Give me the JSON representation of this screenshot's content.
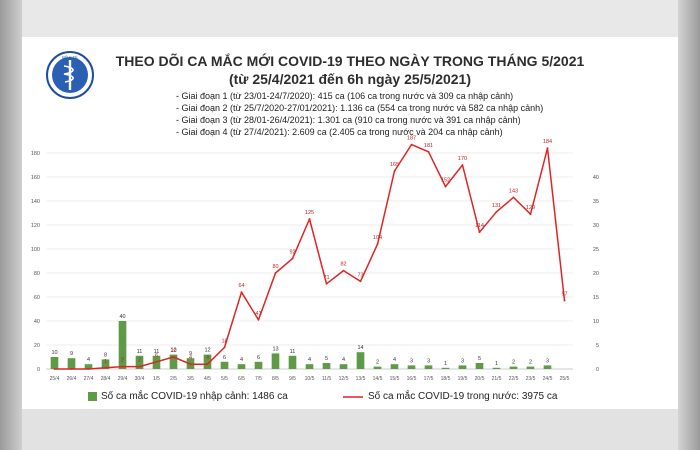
{
  "header": {
    "title": "THEO DÕI CA MẮC MỚI COVID-19 THEO NGÀY TRONG THÁNG 5/2021",
    "subtitle": "(từ 25/4/2021 đến 6h ngày 25/5/2021)",
    "phases": [
      "- Giai đoạn 1 (từ 23/01-24/7/2020): 415 ca (106 ca trong nước và 309 ca nhập cảnh)",
      "- Giai đoạn 2 (từ 25/7/2020-27/01/2021): 1.136 ca (554 ca trong nước và 582 ca nhập cảnh)",
      "- Giai đoạn 3 (từ 28/01-26/4/2021): 1.301 ca (910 ca trong nước và 391 ca nhập cảnh)",
      "- Giai đoạn 4 (từ 27/4/2021): 2.609 ca (2.405 ca trong nước và 204 ca nhập cảnh)"
    ]
  },
  "colors": {
    "bar": "#5f9b47",
    "line": "#e02424",
    "background": "#ffffff"
  },
  "logo": {
    "icon": "ministry-of-health-emblem",
    "text": "BỘ Y TẾ"
  },
  "chart_data": {
    "type": "bar+line",
    "categories": [
      "25/4",
      "26/4",
      "27/4",
      "28/4",
      "29/4",
      "30/4",
      "1/5",
      "2/5",
      "3/5",
      "4/5",
      "5/5",
      "6/5",
      "7/5",
      "8/5",
      "9/5",
      "10/5",
      "11/5",
      "12/5",
      "13/5",
      "14/5",
      "15/5",
      "16/5",
      "17/5",
      "18/5",
      "19/5",
      "20/5",
      "21/5",
      "22/5",
      "23/5",
      "24/5",
      "25/5"
    ],
    "left_axis": {
      "ylim": [
        0,
        180
      ],
      "ticks": [
        0,
        20,
        40,
        60,
        80,
        100,
        120,
        140,
        160,
        180
      ]
    },
    "right_axis": {
      "ylim": [
        0,
        45
      ],
      "ticks": [
        0,
        5,
        10,
        15,
        20,
        25,
        30,
        35,
        40
      ]
    },
    "series": [
      {
        "name": "Số ca mắc COVID-19 nhập cảnh: 1486 ca",
        "type": "bar",
        "axis": "left",
        "values": [
          10,
          9,
          4,
          8,
          40,
          11,
          11,
          12,
          9,
          12,
          6,
          4,
          6,
          13,
          11,
          4,
          5,
          4,
          14,
          2,
          4,
          3,
          3,
          1,
          3,
          5,
          1,
          2,
          2,
          3,
          0
        ],
        "labels": [
          "10",
          "9",
          "4",
          "8",
          "40",
          "11",
          "11",
          "12",
          "9",
          "12",
          "6",
          "4",
          "6",
          "13",
          "11",
          "4",
          "5",
          "4",
          "14",
          "2",
          "4",
          "3",
          "3",
          "1",
          "3",
          "5",
          "1",
          "2",
          "2",
          "3",
          ""
        ]
      },
      {
        "name": "Số ca mắc COVID-19 trong nước: 3975 ca",
        "type": "line",
        "axis": "left",
        "values": [
          0,
          0,
          0,
          1,
          2,
          2,
          6,
          10,
          4,
          4,
          18,
          64,
          41,
          80,
          92,
          125,
          71,
          82,
          73,
          104,
          165,
          187,
          181,
          152,
          170,
          114,
          131,
          143,
          129,
          184,
          57
        ],
        "labels": [
          "",
          "",
          "",
          "1",
          "2",
          "2",
          "6",
          "10",
          "4",
          "4",
          "18",
          "64",
          "41",
          "80",
          "92",
          "125",
          "71",
          "82",
          "73",
          "104",
          "165",
          "187",
          "181",
          "152",
          "170",
          "114",
          "131",
          "143",
          "129",
          "184",
          "57"
        ]
      }
    ]
  }
}
